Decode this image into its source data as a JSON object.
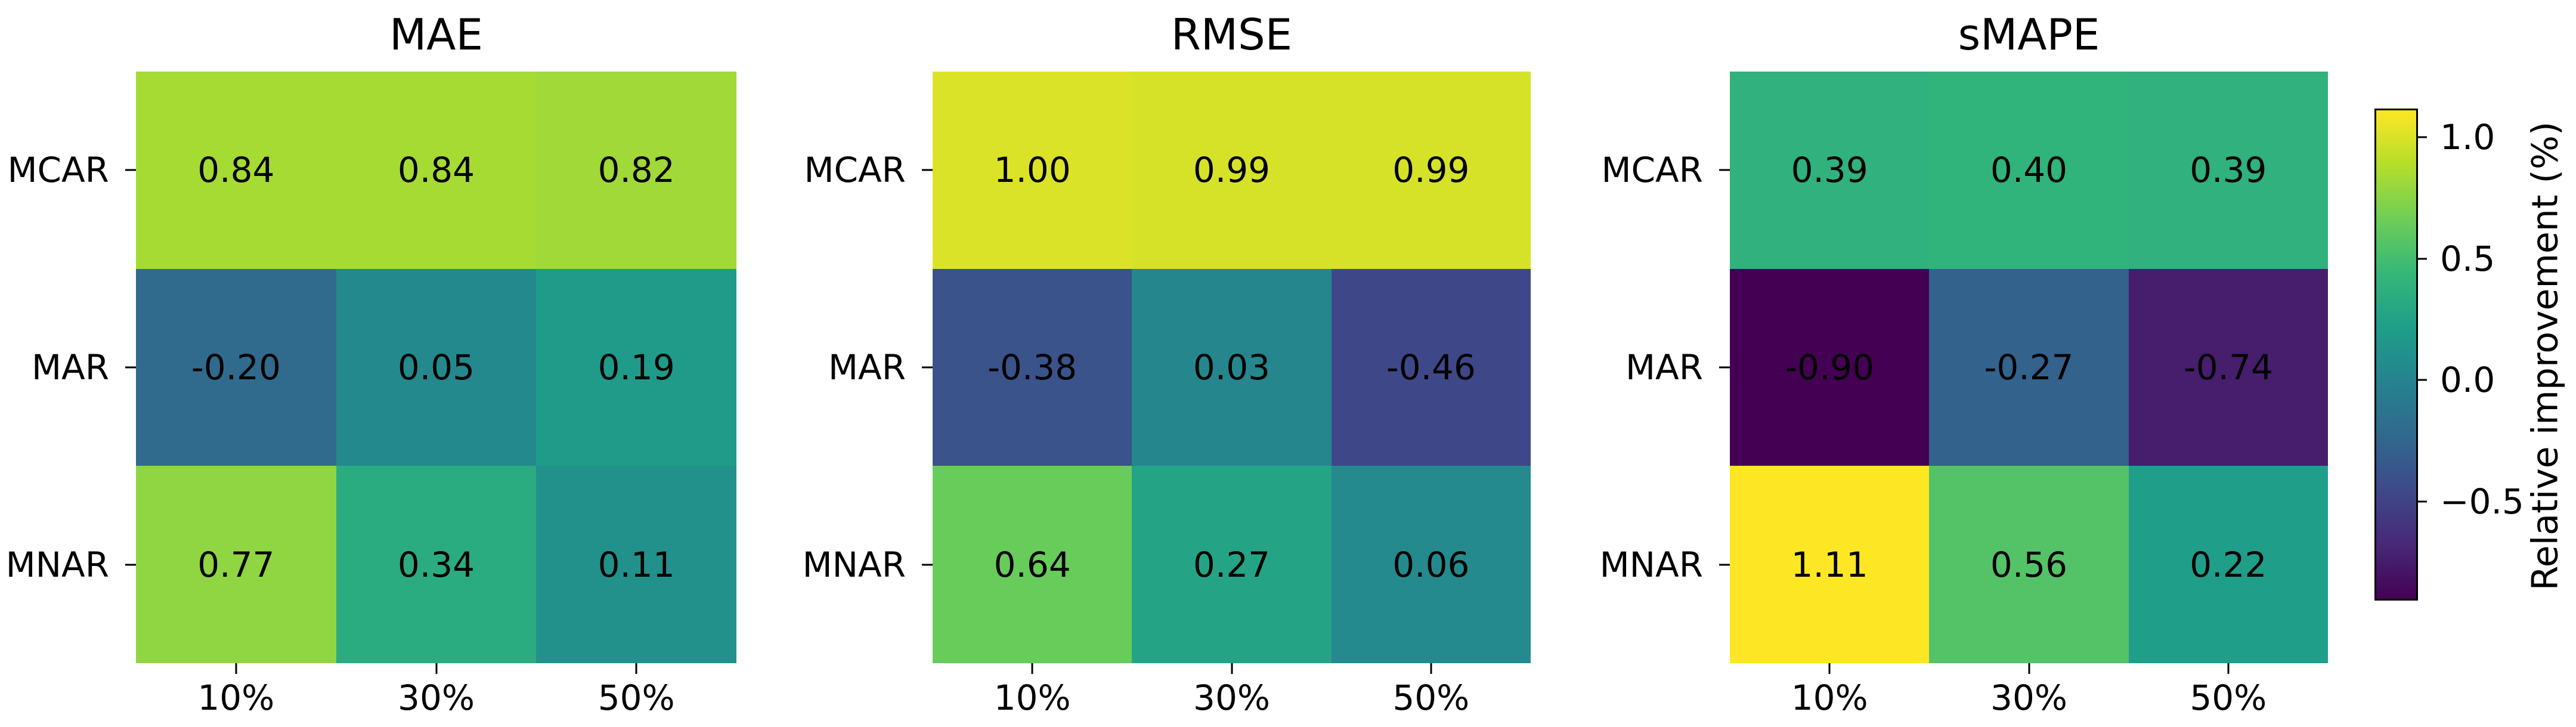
{
  "chart_data": [
    {
      "type": "heatmap",
      "title": "MAE",
      "rows": [
        "MCAR",
        "MAR",
        "MNAR"
      ],
      "columns": [
        "10%",
        "30%",
        "50%"
      ],
      "values": [
        [
          0.84,
          0.84,
          0.82
        ],
        [
          -0.2,
          0.05,
          0.19
        ],
        [
          0.77,
          0.34,
          0.11
        ]
      ],
      "value_format": "2dp",
      "annotation_color": "#000000"
    },
    {
      "type": "heatmap",
      "title": "RMSE",
      "rows": [
        "MCAR",
        "MAR",
        "MNAR"
      ],
      "columns": [
        "10%",
        "30%",
        "50%"
      ],
      "values": [
        [
          1.0,
          0.99,
          0.99
        ],
        [
          -0.38,
          0.03,
          -0.46
        ],
        [
          0.64,
          0.27,
          0.06
        ]
      ],
      "value_format": "2dp",
      "annotation_color": "#000000"
    },
    {
      "type": "heatmap",
      "title": "sMAPE",
      "rows": [
        "MCAR",
        "MAR",
        "MNAR"
      ],
      "columns": [
        "10%",
        "30%",
        "50%"
      ],
      "values": [
        [
          0.39,
          0.4,
          0.39
        ],
        [
          -0.9,
          -0.27,
          -0.74
        ],
        [
          1.11,
          0.56,
          0.22
        ]
      ],
      "value_format": "2dp",
      "annotation_color": "#000000"
    }
  ],
  "colorbar": {
    "label": "Relative improvement (%)",
    "ticks": [
      {
        "label": "1.0",
        "value": 1.0
      },
      {
        "label": "0.5",
        "value": 0.5
      },
      {
        "label": "0.0",
        "value": 0.0
      },
      {
        "label": "−0.5",
        "value": -0.5
      }
    ],
    "vmin": -0.9,
    "vmax": 1.11,
    "colormap": "viridis",
    "colormap_anchors": [
      "#440154",
      "#482878",
      "#3e4989",
      "#31688e",
      "#26828e",
      "#1f9e89",
      "#35b779",
      "#6ece58",
      "#b5de2b",
      "#fde725"
    ]
  },
  "colors": {
    "background": "#ffffff",
    "text": "#000000",
    "tick_mark": "#000000"
  }
}
